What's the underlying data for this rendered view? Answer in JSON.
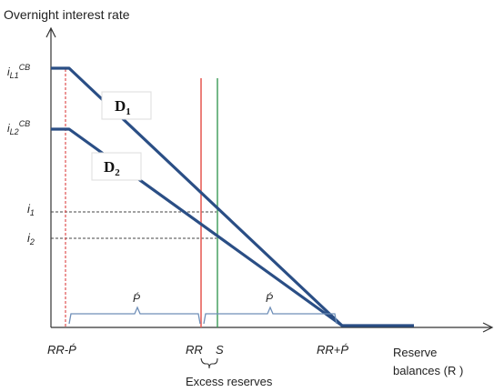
{
  "y_axis_label": "Overnight interest rate",
  "x_axis_label_line1": "Reserve",
  "x_axis_label_line2": "balances (R )",
  "rates": {
    "il1_base": "i",
    "il1_sub": "L1",
    "il1_sup": "CB",
    "il2_base": "i",
    "il2_sub": "L2",
    "il2_sup": "CB",
    "i1_base": "i",
    "i1_sub": "1",
    "i2_base": "i",
    "i2_sub": "2"
  },
  "curves": {
    "d1_base": "D",
    "d1_sub": "1",
    "d2_base": "D",
    "d2_sub": "2"
  },
  "x_ticks": {
    "rr_minus_p": "RR-Ṕ",
    "rr": "RR",
    "s": "S",
    "rr_plus_p": "RR+Ṕ"
  },
  "braces": {
    "left_label": "Ṕ",
    "right_label": "Ṕ",
    "excess_label": "Excess reserves"
  },
  "colors": {
    "demand_curve": "#2a4e85",
    "rr_line": "#e8605a",
    "s_line": "#3a9a55",
    "rr_minus_p_line": "#e05050",
    "brace": "#6f8fb8",
    "axis": "#333333"
  }
}
